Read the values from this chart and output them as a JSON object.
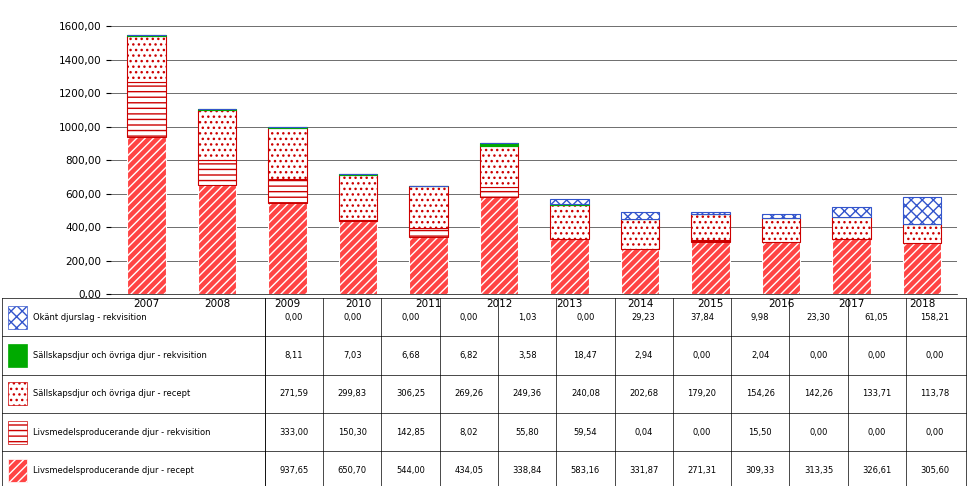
{
  "years": [
    "2007",
    "2008",
    "2009",
    "2010",
    "2011",
    "2012",
    "2013",
    "2014",
    "2015",
    "2016",
    "2017",
    "2018"
  ],
  "series": [
    {
      "label": "Livsmedelsproducerande djur - recept",
      "values": [
        937.65,
        650.7,
        544.0,
        434.05,
        338.84,
        583.16,
        331.87,
        271.31,
        309.33,
        313.35,
        326.61,
        305.6
      ],
      "hatch": "////",
      "facecolor": "#ff4444",
      "edgecolor": "#ffffff",
      "linewidth": 0.8
    },
    {
      "label": "Livsmedelsproducerande djur - rekvisition",
      "values": [
        333.0,
        150.3,
        142.85,
        8.02,
        55.8,
        59.54,
        0.04,
        0.0,
        15.5,
        0.0,
        0.0,
        0.0
      ],
      "hatch": "---",
      "facecolor": "#ffffff",
      "edgecolor": "#cc0000",
      "linewidth": 0.8
    },
    {
      "label": "Sällskapsdjur och övriga djur - recept",
      "values": [
        271.59,
        299.83,
        306.25,
        269.26,
        249.36,
        240.08,
        202.68,
        179.2,
        154.26,
        142.26,
        133.71,
        113.78
      ],
      "hatch": "...",
      "facecolor": "#ffffff",
      "edgecolor": "#cc0000",
      "linewidth": 0.8
    },
    {
      "label": "Sällskapsdjur och övriga djur - rekvisition",
      "values": [
        8.11,
        7.03,
        6.68,
        6.82,
        3.58,
        18.47,
        2.94,
        0.0,
        2.04,
        0.0,
        0.0,
        0.0
      ],
      "hatch": "",
      "facecolor": "#00aa00",
      "edgecolor": "#00aa00",
      "linewidth": 0.8
    },
    {
      "label": "Okänt djurslag - rekvisition",
      "values": [
        0.0,
        0.0,
        0.0,
        0.0,
        1.03,
        0.0,
        29.23,
        37.84,
        9.98,
        23.3,
        61.05,
        158.21
      ],
      "hatch": "xxx",
      "facecolor": "#ffffff",
      "edgecolor": "#3355cc",
      "linewidth": 0.8
    }
  ],
  "legend_order": [
    4,
    3,
    2,
    1,
    0
  ],
  "ylim": [
    0,
    1700
  ],
  "yticks": [
    0,
    200,
    400,
    600,
    800,
    1000,
    1200,
    1400,
    1600
  ],
  "bar_width": 0.55,
  "figsize": [
    9.67,
    4.86
  ],
  "dpi": 100,
  "tick_fontsize": 7.5,
  "table_fontsize": 6.0
}
